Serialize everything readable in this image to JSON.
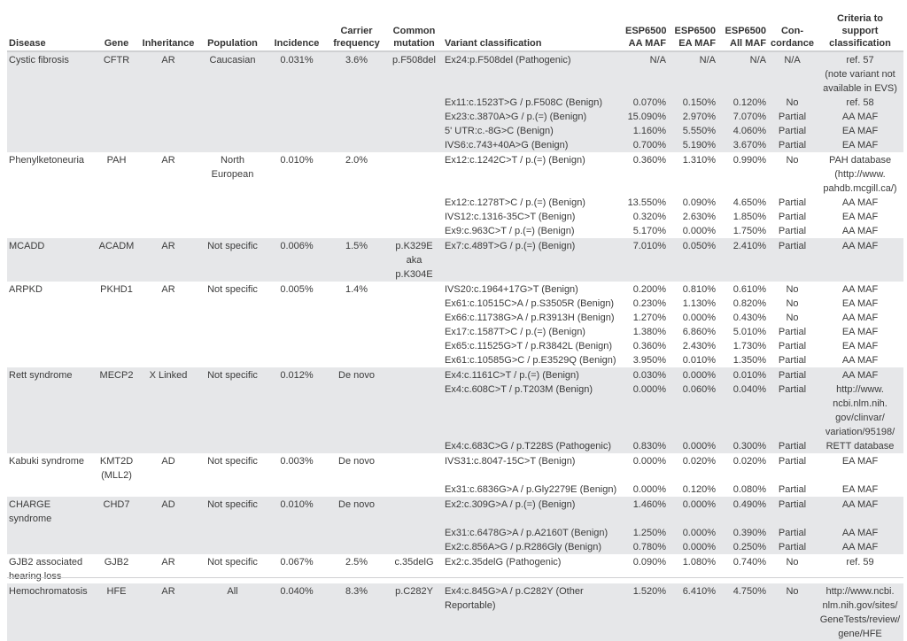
{
  "headers": [
    "Disease",
    "Gene",
    "Inheritance",
    "Population",
    "Incidence",
    "Carrier\nfrequency",
    "Common\nmutation",
    "Variant classification",
    "ESP6500\nAA MAF",
    "ESP6500\nEA MAF",
    "ESP6500\nAll MAF",
    "Con-\ncordance",
    "Criteria to\nsupport\nclassification"
  ],
  "colors": {
    "row_shade": "#e6e7e9",
    "text": "#3b3b3b"
  },
  "diseases": [
    {
      "disease": "Cystic fibrosis",
      "gene": "CFTR",
      "inheritance": "AR",
      "population": "Caucasian",
      "incidence": "0.031%",
      "carrier": "3.6%",
      "common": "p.F508del",
      "variants": [
        [
          "Ex24:p.F508del (Pathogenic)",
          "N/A",
          "N/A",
          "N/A",
          "N/A",
          "ref. 57\n(note variant not\navailable in EVS)"
        ],
        [
          "Ex11:c.1523T>G / p.F508C (Benign)",
          "0.070%",
          "0.150%",
          "0.120%",
          "No",
          "ref. 58"
        ],
        [
          "Ex23:c.3870A>G / p.(=) (Benign)",
          "15.090%",
          "2.970%",
          "7.070%",
          "Partial",
          "AA MAF"
        ],
        [
          "5' UTR:c.-8G>C (Benign)",
          "1.160%",
          "5.550%",
          "4.060%",
          "Partial",
          "EA MAF"
        ],
        [
          "IVS6:c.743+40A>G (Benign)",
          "0.700%",
          "5.190%",
          "3.670%",
          "Partial",
          "EA MAF"
        ]
      ]
    },
    {
      "disease": "Phenylketoneuria",
      "gene": "PAH",
      "inheritance": "AR",
      "population": "North\nEuropean",
      "incidence": "0.010%",
      "carrier": "2.0%",
      "common": "",
      "variants": [
        [
          "Ex12:c.1242C>T / p.(=) (Benign)",
          "0.360%",
          "1.310%",
          "0.990%",
          "No",
          "PAH database\n(http://www.\npahdb.mcgill.ca/)"
        ],
        [
          "Ex12:c.1278T>C / p.(=) (Benign)",
          "13.550%",
          "0.090%",
          "4.650%",
          "Partial",
          "AA MAF"
        ],
        [
          "IVS12:c.1316-35C>T (Benign)",
          "0.320%",
          "2.630%",
          "1.850%",
          "Partial",
          "EA MAF"
        ],
        [
          "Ex9:c.963C>T / p.(=) (Benign)",
          "5.170%",
          "0.000%",
          "1.750%",
          "Partial",
          "AA MAF"
        ]
      ]
    },
    {
      "disease": "MCADD",
      "gene": "ACADM",
      "inheritance": "AR",
      "population": "Not specific",
      "incidence": "0.006%",
      "carrier": "1.5%",
      "common": "p.K329E\naka p.K304E",
      "variants": [
        [
          "Ex7:c.489T>G / p.(=) (Benign)",
          "7.010%",
          "0.050%",
          "2.410%",
          "Partial",
          "AA MAF"
        ]
      ]
    },
    {
      "disease": "ARPKD",
      "gene": "PKHD1",
      "inheritance": "AR",
      "population": "Not specific",
      "incidence": "0.005%",
      "carrier": "1.4%",
      "common": "",
      "variants": [
        [
          "IVS20:c.1964+17G>T (Benign)",
          "0.200%",
          "0.810%",
          "0.610%",
          "No",
          "AA MAF"
        ],
        [
          "Ex61:c.10515C>A / p.S3505R (Benign)",
          "0.230%",
          "1.130%",
          "0.820%",
          "No",
          "EA MAF"
        ],
        [
          "Ex66:c.11738G>A / p.R3913H (Benign)",
          "1.270%",
          "0.000%",
          "0.430%",
          "No",
          "AA MAF"
        ],
        [
          "Ex17:c.1587T>C / p.(=) (Benign)",
          "1.380%",
          "6.860%",
          "5.010%",
          "Partial",
          "EA MAF"
        ],
        [
          "Ex65:c.11525G>T / p.R3842L (Benign)",
          "0.360%",
          "2.430%",
          "1.730%",
          "Partial",
          "EA MAF"
        ],
        [
          "Ex61:c.10585G>C / p.E3529Q (Benign)",
          "3.950%",
          "0.010%",
          "1.350%",
          "Partial",
          "AA MAF"
        ]
      ]
    },
    {
      "disease": "Rett syndrome",
      "gene": "MECP2",
      "inheritance": "X Linked",
      "population": "Not specific",
      "incidence": "0.012%",
      "carrier": "De novo",
      "common": "",
      "variants": [
        [
          "Ex4:c.1161C>T / p.(=) (Benign)",
          "0.030%",
          "0.000%",
          "0.010%",
          "Partial",
          "AA MAF"
        ],
        [
          "Ex4:c.608C>T / p.T203M (Benign)",
          "0.000%",
          "0.060%",
          "0.040%",
          "Partial",
          "http://www.\nncbi.nlm.nih.\ngov/clinvar/\nvariation/95198/"
        ],
        [
          "Ex4:c.683C>G / p.T228S (Pathogenic)",
          "0.830%",
          "0.000%",
          "0.300%",
          "Partial",
          "RETT database"
        ]
      ]
    },
    {
      "disease": "Kabuki syndrome",
      "gene": "KMT2D\n(MLL2)",
      "inheritance": "AD",
      "population": "Not specific",
      "incidence": "0.003%",
      "carrier": "De novo",
      "common": "",
      "variants": [
        [
          "IVS31:c.8047-15C>T (Benign)",
          "0.000%",
          "0.020%",
          "0.020%",
          "Partial",
          "EA MAF"
        ],
        [
          "Ex31:c.6836G>A / p.Gly2279E (Benign)",
          "0.000%",
          "0.120%",
          "0.080%",
          "Partial",
          "EA MAF"
        ]
      ]
    },
    {
      "disease": "CHARGE syndrome",
      "gene": "CHD7",
      "inheritance": "AD",
      "population": "Not specific",
      "incidence": "0.010%",
      "carrier": "De novo",
      "common": "",
      "variants": [
        [
          "Ex2:c.309G>A / p.(=) (Benign)",
          "1.460%",
          "0.000%",
          "0.490%",
          "Partial",
          "AA MAF"
        ],
        [
          "Ex31:c.6478G>A / p.A2160T (Benign)",
          "1.250%",
          "0.000%",
          "0.390%",
          "Partial",
          "AA MAF"
        ],
        [
          "Ex2:c.856A>G / p.R286Gly (Benign)",
          "0.780%",
          "0.000%",
          "0.250%",
          "Partial",
          "AA MAF"
        ]
      ]
    },
    {
      "disease": "GJB2 associated\nhearing loss",
      "gene": "GJB2",
      "inheritance": "AR",
      "population": "Not specific",
      "incidence": "0.067%",
      "carrier": "2.5%",
      "common": "c.35delG",
      "variants": [
        [
          "Ex2:c.35delG (Pathogenic)",
          "0.090%",
          "1.080%",
          "0.740%",
          "No",
          "ref. 59"
        ]
      ]
    },
    {
      "disease": "Hemochromatosis",
      "gene": "HFE",
      "inheritance": "AR",
      "population": "All",
      "incidence": "0.040%",
      "carrier": "8.3%",
      "common": "p.C282Y",
      "variants": [
        [
          "Ex4:c.845G>A / p.C282Y (Other\nReportable)",
          "1.520%",
          "6.410%",
          "4.750%",
          "No",
          "http://www.ncbi.\nnlm.nih.gov/sites/\nGeneTests/review/\ngene/HFE"
        ]
      ]
    }
  ]
}
